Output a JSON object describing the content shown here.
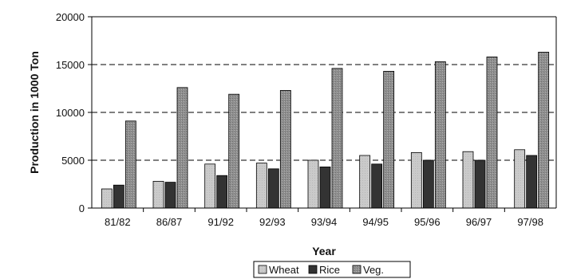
{
  "chart_data": {
    "type": "bar",
    "title": "",
    "xlabel": "Year",
    "ylabel": "Production in 1000 Ton",
    "ylim": [
      0,
      20000
    ],
    "yticks": [
      0,
      5000,
      10000,
      15000,
      20000
    ],
    "grid": "horizontal dashed",
    "legend_position": "bottom",
    "categories": [
      "81/82",
      "86/87",
      "91/92",
      "92/93",
      "93/94",
      "94/95",
      "95/96",
      "96/97",
      "97/98"
    ],
    "series": [
      {
        "name": "Wheat",
        "color": "#c8c8c8",
        "values": [
          2000,
          2800,
          4600,
          4700,
          5000,
          5500,
          5800,
          5900,
          6100
        ]
      },
      {
        "name": "Rice",
        "color": "#333333",
        "values": [
          2400,
          2700,
          3400,
          4100,
          4300,
          4600,
          5000,
          5000,
          5500
        ]
      },
      {
        "name": "Veg.",
        "color": "#8e8e8e",
        "values": [
          9100,
          12600,
          11900,
          12300,
          14600,
          14300,
          15300,
          15800,
          16300
        ]
      }
    ]
  }
}
